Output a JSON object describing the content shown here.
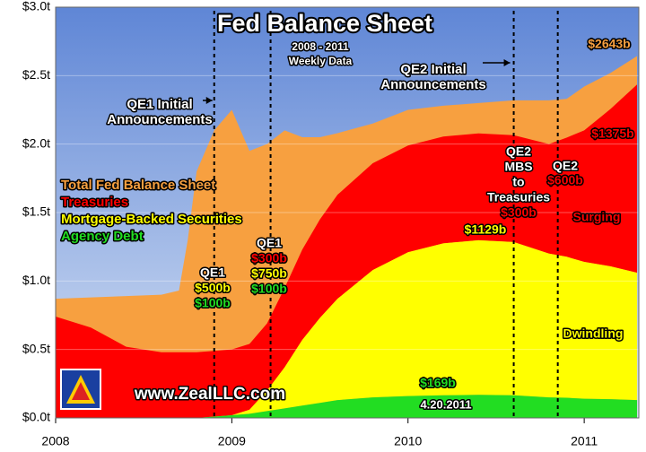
{
  "chart_data": {
    "type": "area",
    "title": "Fed Balance Sheet",
    "x": [
      2008.0,
      2008.2,
      2008.4,
      2008.6,
      2008.7,
      2008.75,
      2008.8,
      2008.9,
      2009.0,
      2009.1,
      2009.2,
      2009.3,
      2009.4,
      2009.5,
      2009.6,
      2009.8,
      2010.0,
      2010.2,
      2010.4,
      2010.6,
      2010.8,
      2010.9,
      2011.0,
      2011.15,
      2011.3
    ],
    "series": [
      {
        "name": "Total Fed Balance Sheet",
        "color": "#f7a040",
        "stacked": false,
        "values": [
          0.87,
          0.88,
          0.89,
          0.9,
          0.93,
          1.3,
          1.8,
          2.1,
          2.25,
          1.95,
          2.0,
          2.1,
          2.05,
          2.05,
          2.08,
          2.15,
          2.25,
          2.28,
          2.3,
          2.32,
          2.32,
          2.33,
          2.42,
          2.52,
          2.643
        ]
      },
      {
        "name": "Treasuries",
        "color": "#ff0000",
        "stacked": true,
        "values": [
          0.74,
          0.66,
          0.52,
          0.48,
          0.48,
          0.48,
          0.48,
          0.48,
          0.48,
          0.48,
          0.49,
          0.58,
          0.66,
          0.72,
          0.76,
          0.78,
          0.78,
          0.78,
          0.78,
          0.78,
          0.8,
          0.87,
          0.96,
          1.15,
          1.375
        ]
      },
      {
        "name": "Mortgage-Backed Securities",
        "color": "#ffff00",
        "stacked": true,
        "values": [
          0,
          0,
          0,
          0,
          0,
          0,
          0,
          0,
          0,
          0.03,
          0.15,
          0.3,
          0.48,
          0.62,
          0.74,
          0.93,
          1.05,
          1.11,
          1.129,
          1.12,
          1.05,
          1.03,
          1.0,
          0.97,
          0.93
        ]
      },
      {
        "name": "Agency Debt",
        "color": "#22dd22",
        "stacked": true,
        "values": [
          0,
          0,
          0,
          0,
          0,
          0,
          0,
          0.01,
          0.02,
          0.03,
          0.05,
          0.07,
          0.09,
          0.11,
          0.13,
          0.15,
          0.16,
          0.165,
          0.169,
          0.165,
          0.15,
          0.147,
          0.14,
          0.137,
          0.13
        ]
      }
    ],
    "xlim": [
      2008,
      2011.31
    ],
    "xticks": [
      2008,
      2009,
      2010,
      2011
    ],
    "ylim": [
      0,
      3
    ],
    "yticks": [
      {
        "value": 0,
        "label": "$0.0t"
      },
      {
        "value": 0.5,
        "label": "$0.5t"
      },
      {
        "value": 1,
        "label": "$1.0t"
      },
      {
        "value": 1.5,
        "label": "$1.5t"
      },
      {
        "value": 2,
        "label": "$2.0t"
      },
      {
        "value": 2.5,
        "label": "$2.5t"
      },
      {
        "value": 3,
        "label": "$3.0t"
      }
    ],
    "grid": true,
    "event_lines": [
      2008.9,
      2009.22,
      2010.6,
      2010.85
    ],
    "annotations": [
      {
        "lines": [
          "QE1 Initial",
          "Announcements"
        ],
        "colors": [
          "#ffffff",
          "#ffffff"
        ]
      },
      {
        "lines": [
          "2008 - 2011",
          "Weekly Data"
        ],
        "colors": [
          "#ffffff",
          "#ffffff"
        ]
      },
      {
        "lines": [
          "QE2 Initial",
          "Announcements"
        ],
        "colors": [
          "#ffffff",
          "#ffffff"
        ]
      },
      {
        "lines": [
          "$2643b"
        ],
        "colors": [
          "#f7a040"
        ]
      },
      {
        "lines": [
          "$1375b"
        ],
        "colors": [
          "#ff0000"
        ]
      },
      {
        "lines": [
          "QE2",
          "MBS",
          "to",
          "Treasuries",
          "$300b"
        ],
        "colors": [
          "#ffffff",
          "#ffffff",
          "#ffffff",
          "#ffffff",
          "#ff0000"
        ]
      },
      {
        "lines": [
          "QE2",
          "$600b"
        ],
        "colors": [
          "#ffffff",
          "#ff0000"
        ]
      },
      {
        "lines": [
          "Surging"
        ],
        "colors": [
          "#ff0000"
        ]
      },
      {
        "lines": [
          "$1129b"
        ],
        "colors": [
          "#ffff00"
        ]
      },
      {
        "lines": [
          "QE1",
          "$500b",
          "$100b"
        ],
        "colors": [
          "#ffffff",
          "#ffff00",
          "#22dd22"
        ]
      },
      {
        "lines": [
          "QE1",
          "$300b",
          "$750b",
          "$100b"
        ],
        "colors": [
          "#ffffff",
          "#ff0000",
          "#ffff00",
          "#22dd22"
        ]
      },
      {
        "lines": [
          "Dwindling"
        ],
        "colors": [
          "#ffff00"
        ]
      },
      {
        "lines": [
          "$169b"
        ],
        "colors": [
          "#22dd22"
        ]
      },
      {
        "lines": [
          "4.20.2011"
        ],
        "colors": [
          "#ffffff"
        ]
      },
      {
        "lines": [
          "www.ZealLLC.com"
        ],
        "colors": [
          "#ffffff"
        ]
      }
    ]
  }
}
